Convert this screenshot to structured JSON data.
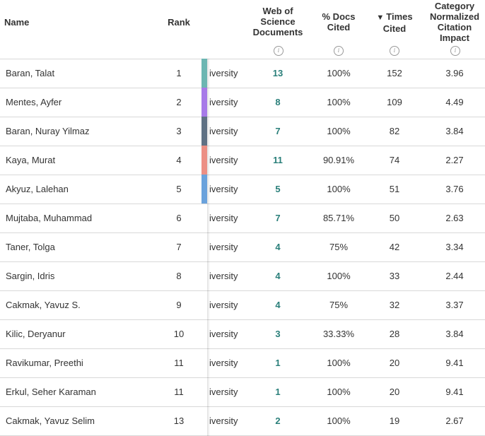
{
  "columns": {
    "name": "Name",
    "rank": "Rank",
    "wos": "Web of Science Documents",
    "docs_cited": "% Docs Cited",
    "times_cited": "Times Cited",
    "times_sort_icon": "▼",
    "cnci": "Category Normalized Citation Impact",
    "info_icon": "i"
  },
  "rows": [
    {
      "name": "Baran, Talat",
      "rank": "1",
      "aff": "iversity",
      "wos": "13",
      "docs": "100%",
      "times": "152",
      "cnci": "3.96",
      "color": "#6cb6b2"
    },
    {
      "name": "Mentes, Ayfer",
      "rank": "2",
      "aff": "iversity",
      "wos": "8",
      "docs": "100%",
      "times": "109",
      "cnci": "4.49",
      "color": "#a77ae8"
    },
    {
      "name": "Baran, Nuray Yilmaz",
      "rank": "3",
      "aff": "iversity",
      "wos": "7",
      "docs": "100%",
      "times": "82",
      "cnci": "3.84",
      "color": "#5f7184"
    },
    {
      "name": "Kaya, Murat",
      "rank": "4",
      "aff": "iversity",
      "wos": "11",
      "docs": "90.91%",
      "times": "74",
      "cnci": "2.27",
      "color": "#ec8f84"
    },
    {
      "name": "Akyuz, Lalehan",
      "rank": "5",
      "aff": "iversity",
      "wos": "5",
      "docs": "100%",
      "times": "51",
      "cnci": "3.76",
      "color": "#6aa2dc"
    },
    {
      "name": "Mujtaba, Muhammad",
      "rank": "6",
      "aff": "iversity",
      "wos": "7",
      "docs": "85.71%",
      "times": "50",
      "cnci": "2.63",
      "color": ""
    },
    {
      "name": "Taner, Tolga",
      "rank": "7",
      "aff": "iversity",
      "wos": "4",
      "docs": "75%",
      "times": "42",
      "cnci": "3.34",
      "color": ""
    },
    {
      "name": "Sargin, Idris",
      "rank": "8",
      "aff": "iversity",
      "wos": "4",
      "docs": "100%",
      "times": "33",
      "cnci": "2.44",
      "color": ""
    },
    {
      "name": "Cakmak, Yavuz S.",
      "rank": "9",
      "aff": "iversity",
      "wos": "4",
      "docs": "75%",
      "times": "32",
      "cnci": "3.37",
      "color": ""
    },
    {
      "name": "Kilic, Deryanur",
      "rank": "10",
      "aff": "iversity",
      "wos": "3",
      "docs": "33.33%",
      "times": "28",
      "cnci": "3.84",
      "color": ""
    },
    {
      "name": "Ravikumar, Preethi",
      "rank": "11",
      "aff": "iversity",
      "wos": "1",
      "docs": "100%",
      "times": "20",
      "cnci": "9.41",
      "color": ""
    },
    {
      "name": "Erkul, Seher Karaman",
      "rank": "11",
      "aff": "iversity",
      "wos": "1",
      "docs": "100%",
      "times": "20",
      "cnci": "9.41",
      "color": ""
    },
    {
      "name": "Cakmak, Yavuz Selim",
      "rank": "13",
      "aff": "iversity",
      "wos": "2",
      "docs": "100%",
      "times": "19",
      "cnci": "2.67",
      "color": ""
    }
  ]
}
